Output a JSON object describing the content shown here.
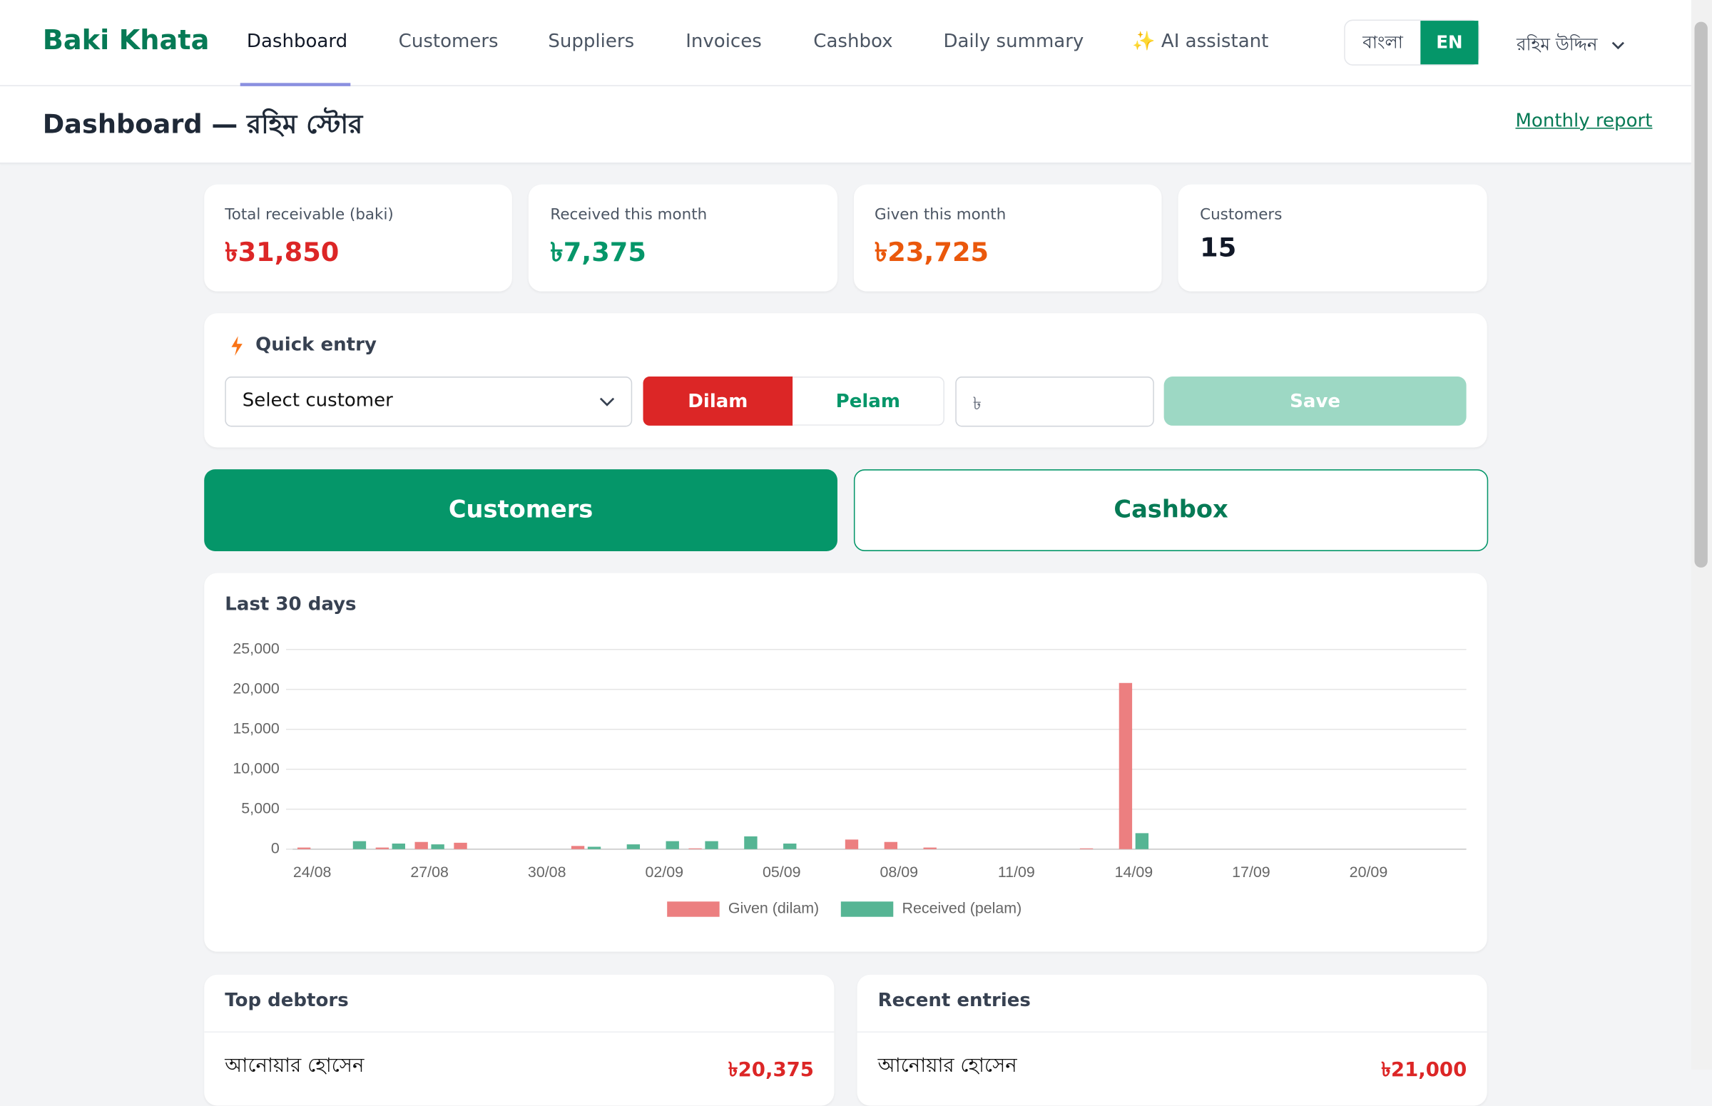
{
  "header": {
    "brand": "Baki Khata",
    "nav": [
      "Dashboard",
      "Customers",
      "Suppliers",
      "Invoices",
      "Cashbox",
      "Daily summary",
      "✨ AI assistant"
    ],
    "languages": [
      "বাংলা",
      "EN"
    ],
    "user": "রহিম উদ্দিন"
  },
  "page": {
    "title": "Dashboard — রহিম স্টোর",
    "link": "Monthly report"
  },
  "stats": [
    {
      "label": "Total receivable (baki)",
      "value": "৳31,850"
    },
    {
      "label": "Received this month",
      "value": "৳7,375"
    },
    {
      "label": "Given this month",
      "value": "৳23,725"
    },
    {
      "label": "Customers",
      "value": "15"
    }
  ],
  "quick_entry": {
    "title": "Quick entry",
    "select": "Select customer",
    "dilam": "Dilam",
    "pelam": "Pelam",
    "amount_placeholder": "৳",
    "save": "Save"
  },
  "actions": [
    "Customers",
    "Cashbox"
  ],
  "chart_data": {
    "type": "bar",
    "title": "Last 30 days",
    "categories": [
      "24/08",
      null,
      null,
      "27/08",
      null,
      null,
      "30/08",
      null,
      null,
      "02/09",
      null,
      null,
      "05/09",
      null,
      null,
      "08/09",
      null,
      null,
      "11/09",
      null,
      null,
      "14/09",
      null,
      null,
      "17/09",
      null,
      null,
      "20/09",
      null,
      null
    ],
    "series": [
      {
        "name": "Given (dilam)",
        "color": "#ec7f80",
        "values": [
          200,
          0,
          200,
          900,
          800,
          0,
          0,
          400,
          0,
          0,
          100,
          0,
          0,
          0,
          1200,
          900,
          200,
          0,
          0,
          0,
          100,
          20800,
          0,
          0,
          0,
          0,
          0,
          0,
          0,
          0
        ]
      },
      {
        "name": "Received (pelam)",
        "color": "#56b594",
        "values": [
          0,
          1000,
          700,
          600,
          0,
          0,
          0,
          300,
          600,
          1000,
          1000,
          1600,
          700,
          0,
          0,
          0,
          0,
          0,
          0,
          0,
          0,
          2000,
          0,
          0,
          0,
          0,
          0,
          0,
          0,
          0
        ]
      }
    ],
    "ylim": [
      0,
      25000
    ],
    "yticks": [
      0,
      {
        "value": 5000,
        "label": "5,000"
      },
      {
        "value": 10000,
        "label": "10,000"
      },
      {
        "value": 15000,
        "label": "15,000"
      },
      {
        "value": 20000,
        "label": "20,000"
      },
      {
        "value": 25000,
        "label": "25,000"
      }
    ],
    "grid": true
  },
  "top_debtors": {
    "title": "Top debtors",
    "rows": [
      {
        "name": "আনোয়ার হোসেন",
        "amount": "৳20,375"
      }
    ]
  },
  "recent_entries": {
    "title": "Recent entries",
    "rows": [
      {
        "name": "আনোয়ার হোসেন",
        "amount": "৳21,000"
      }
    ]
  }
}
